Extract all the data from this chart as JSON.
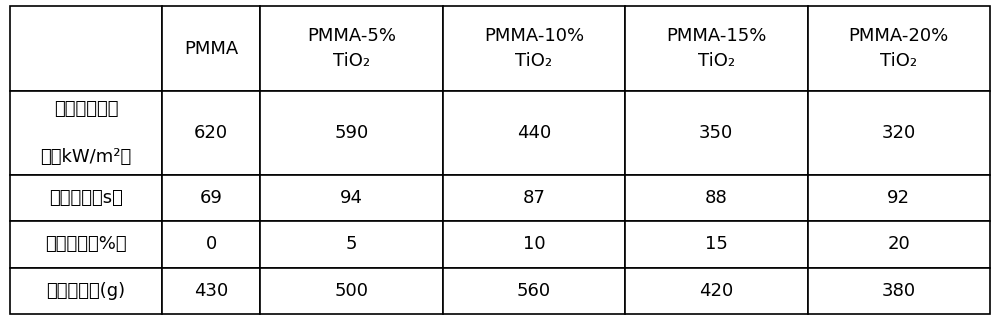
{
  "col_headers": [
    "",
    "PMMA",
    "PMMA-5%\nTiO₂",
    "PMMA-10%\nTiO₂",
    "PMMA-15%\nTiO₂",
    "PMMA-20%\nTiO₂"
  ],
  "row_labels": [
    "峰値热释放速率（kW/m²）",
    "点燃时间（s）",
    "剩余质量（%）",
    "总的生烟量(g)"
  ],
  "row_labels_line1": [
    "峰値热释放速",
    "点燃时间（s）",
    "剩余质量（%）",
    "总的生烟量(g)"
  ],
  "row_labels_line2": [
    "率（kW/m²）",
    "",
    "",
    ""
  ],
  "data": [
    [
      "620",
      "590",
      "440",
      "350",
      "320"
    ],
    [
      "69",
      "94",
      "87",
      "88",
      "92"
    ],
    [
      "0",
      "5",
      "10",
      "15",
      "20"
    ],
    [
      "430",
      "500",
      "560",
      "420",
      "380"
    ]
  ],
  "background_color": "#ffffff",
  "border_color": "#000000",
  "text_color": "#000000",
  "fontsize": 13
}
